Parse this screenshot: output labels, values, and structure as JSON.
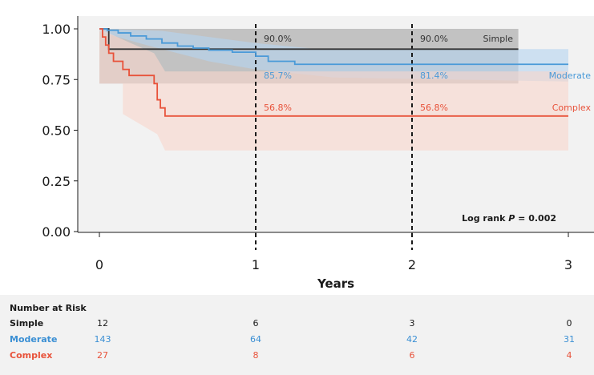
{
  "chart_data": {
    "type": "line",
    "subtype": "kaplan-meier",
    "title": "",
    "xlabel": "Years",
    "ylabel": "",
    "xlim": [
      0,
      3
    ],
    "ylim": [
      0,
      1
    ],
    "x_ticks": [
      "0",
      "1",
      "2",
      "3"
    ],
    "y_ticks": [
      "0.00",
      "0.25",
      "0.50",
      "0.75",
      "1.00"
    ],
    "reference_lines_x": [
      1,
      2
    ],
    "annotation": "Log rank",
    "annotation_p": "P",
    "annotation_value": "= 0.002",
    "series": [
      {
        "name": "Simple",
        "color": "#333333",
        "ci_color": "#9a9a9a",
        "points": [
          [
            0,
            1.0
          ],
          [
            0.06,
            1.0
          ],
          [
            0.06,
            0.9
          ],
          [
            2.68,
            0.9
          ]
        ],
        "ci_upper": [
          [
            0,
            1.0
          ],
          [
            2.68,
            1.0
          ]
        ],
        "ci_lower": [
          [
            0,
            0.73
          ],
          [
            2.68,
            0.73
          ]
        ],
        "labels": [
          {
            "at": 1,
            "value": 0.9,
            "text": "90.0%"
          },
          {
            "at": 2,
            "value": 0.9,
            "text": "90.0%"
          }
        ]
      },
      {
        "name": "Moderate",
        "color": "#4a9ad8",
        "ci_color": "#b4d4f0",
        "points": [
          [
            0,
            1.0
          ],
          [
            0.05,
            1.0
          ],
          [
            0.05,
            0.993
          ],
          [
            0.12,
            0.993
          ],
          [
            0.12,
            0.98
          ],
          [
            0.2,
            0.98
          ],
          [
            0.2,
            0.965
          ],
          [
            0.3,
            0.965
          ],
          [
            0.3,
            0.95
          ],
          [
            0.4,
            0.95
          ],
          [
            0.4,
            0.93
          ],
          [
            0.5,
            0.93
          ],
          [
            0.5,
            0.915
          ],
          [
            0.6,
            0.915
          ],
          [
            0.6,
            0.905
          ],
          [
            0.7,
            0.905
          ],
          [
            0.7,
            0.895
          ],
          [
            0.85,
            0.895
          ],
          [
            0.85,
            0.885
          ],
          [
            1.0,
            0.885
          ],
          [
            1.0,
            0.865
          ],
          [
            1.08,
            0.865
          ],
          [
            1.08,
            0.84
          ],
          [
            1.25,
            0.84
          ],
          [
            1.25,
            0.825
          ],
          [
            3.0,
            0.825
          ]
        ],
        "ci_upper": [
          [
            0,
            1.0
          ],
          [
            0.4,
            0.99
          ],
          [
            1.0,
            0.93
          ],
          [
            1.4,
            0.9
          ],
          [
            3.0,
            0.9
          ]
        ],
        "ci_lower": [
          [
            0,
            0.985
          ],
          [
            0.3,
            0.92
          ],
          [
            0.7,
            0.84
          ],
          [
            1.0,
            0.8
          ],
          [
            1.5,
            0.76
          ],
          [
            3.0,
            0.74
          ]
        ],
        "labels": [
          {
            "at": 1,
            "value": 0.857,
            "text": "85.7%"
          },
          {
            "at": 2,
            "value": 0.814,
            "text": "81.4%"
          }
        ]
      },
      {
        "name": "Complex",
        "color": "#e8523a",
        "ci_color": "#f8d6cc",
        "points": [
          [
            0,
            1.0
          ],
          [
            0.02,
            1.0
          ],
          [
            0.02,
            0.96
          ],
          [
            0.04,
            0.96
          ],
          [
            0.04,
            0.92
          ],
          [
            0.06,
            0.92
          ],
          [
            0.06,
            0.88
          ],
          [
            0.09,
            0.88
          ],
          [
            0.09,
            0.84
          ],
          [
            0.15,
            0.84
          ],
          [
            0.15,
            0.8
          ],
          [
            0.19,
            0.8
          ],
          [
            0.19,
            0.77
          ],
          [
            0.35,
            0.77
          ],
          [
            0.35,
            0.73
          ],
          [
            0.37,
            0.73
          ],
          [
            0.37,
            0.65
          ],
          [
            0.39,
            0.65
          ],
          [
            0.39,
            0.61
          ],
          [
            0.42,
            0.61
          ],
          [
            0.42,
            0.57
          ],
          [
            3.0,
            0.57
          ]
        ],
        "ci_upper": [
          [
            0,
            1.0
          ],
          [
            0.2,
            0.93
          ],
          [
            0.35,
            0.88
          ],
          [
            0.42,
            0.79
          ],
          [
            3.0,
            0.79
          ]
        ],
        "ci_lower": [
          [
            0,
            0.73
          ],
          [
            0.15,
            0.73
          ],
          [
            0.15,
            0.58
          ],
          [
            0.37,
            0.48
          ],
          [
            0.42,
            0.4
          ],
          [
            3.0,
            0.4
          ]
        ],
        "labels": [
          {
            "at": 1,
            "value": 0.568,
            "text": "56.8%"
          },
          {
            "at": 2,
            "value": 0.568,
            "text": "56.8%"
          }
        ]
      }
    ],
    "risk_table": {
      "title": "Number at Risk",
      "times": [
        0,
        1,
        2,
        3
      ],
      "rows": [
        {
          "name": "Simple",
          "color": "#1a1a1a",
          "values": [
            "12",
            "6",
            "3",
            "0"
          ]
        },
        {
          "name": "Moderate",
          "color": "#3a8fd4",
          "values": [
            "143",
            "64",
            "42",
            "31"
          ]
        },
        {
          "name": "Complex",
          "color": "#e8523a",
          "values": [
            "27",
            "8",
            "6",
            "4"
          ]
        }
      ]
    }
  }
}
